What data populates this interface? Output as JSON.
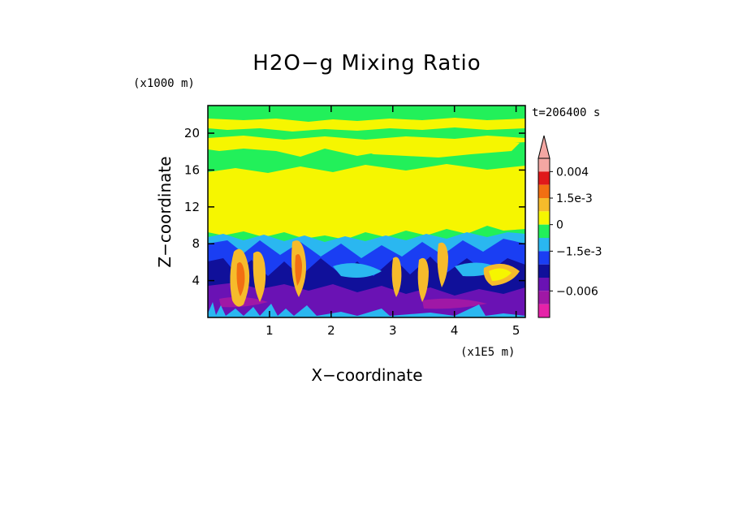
{
  "chart_data": {
    "type": "heatmap",
    "title": "H2O-g Mixing Ratio",
    "xlabel": "X-coordinate",
    "ylabel": "Z-coordinate",
    "x_unit": "(x1E5 m)",
    "y_unit": "(x1000 m)",
    "time_label": "t=206400 s",
    "xlim": [
      0,
      5.15
    ],
    "ylim": [
      0,
      23
    ],
    "x_ticks": [
      1,
      2,
      3,
      4,
      5
    ],
    "y_ticks": [
      4,
      8,
      12,
      16,
      20
    ],
    "colorbar": {
      "levels": [
        {
          "color": "#f4a7a3"
        },
        {
          "color": "#e0191b"
        },
        {
          "color": "#f26f12"
        },
        {
          "color": "#f6bb2b"
        },
        {
          "color": "#f6f600"
        },
        {
          "color": "#22f05a"
        },
        {
          "color": "#2ab7f0"
        },
        {
          "color": "#1a3ef3"
        },
        {
          "color": "#10109a"
        },
        {
          "color": "#6a12b4"
        },
        {
          "color": "#a018a6"
        },
        {
          "color": "#e622a8"
        }
      ],
      "labels": [
        {
          "text": "0.004",
          "level_edge": 1
        },
        {
          "text": "1.5e-3",
          "level_edge": 3
        },
        {
          "text": "0",
          "level_edge": 5
        },
        {
          "text": "−1.5e-3",
          "level_edge": 7
        },
        {
          "text": "−0.006",
          "level_edge": 10
        }
      ]
    }
  },
  "text": {
    "title": "H2O−g Mixing Ratio",
    "xlabel": "X−coordinate",
    "ylabel": "Z−coordinate",
    "x_unit": "(x1E5 m)",
    "y_unit": "(x1000 m)",
    "time_label": "t=206400 s"
  }
}
